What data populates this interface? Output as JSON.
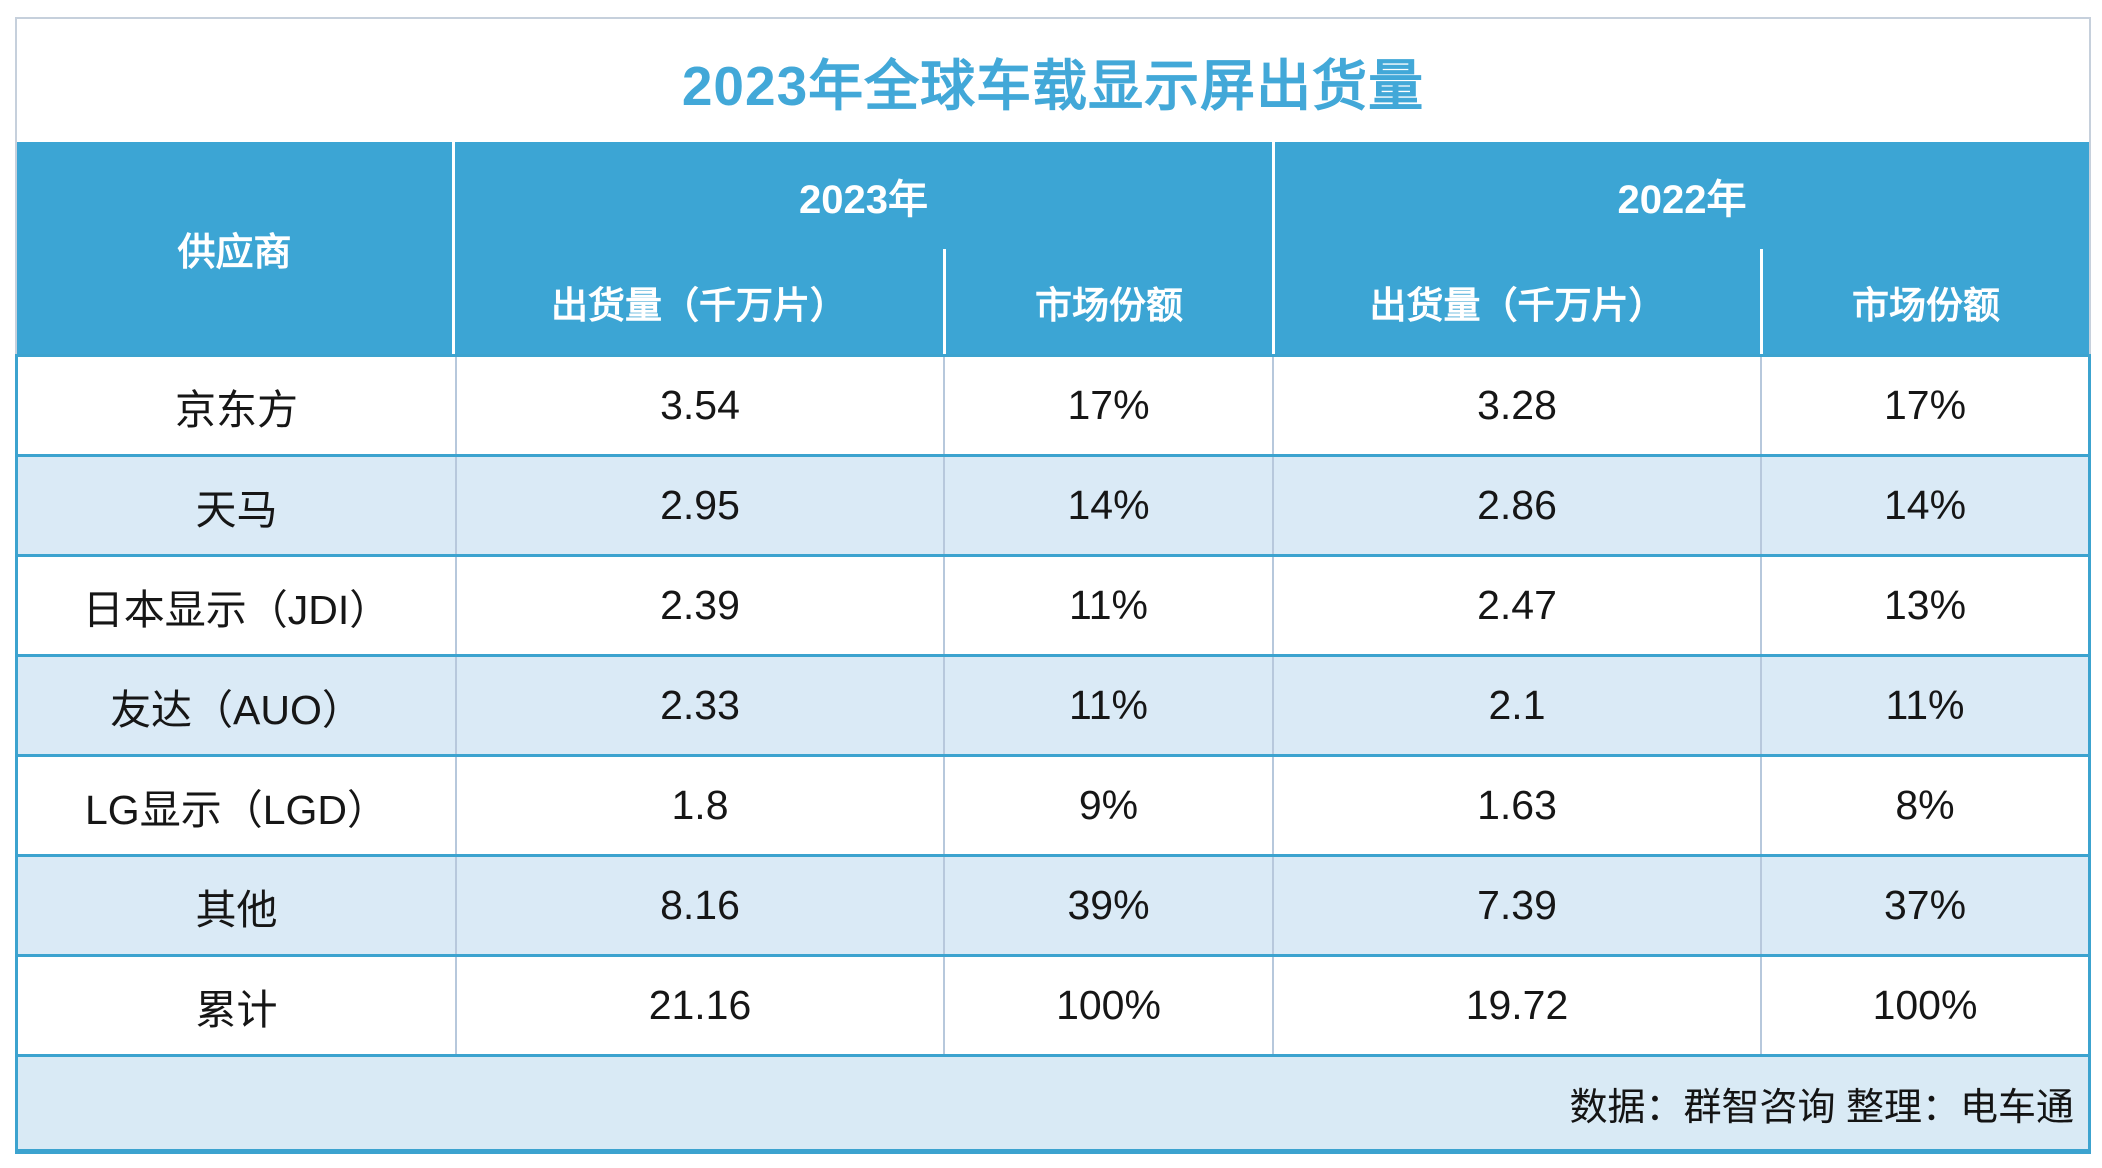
{
  "title": "2023年全球车载显示屏出货量",
  "table": {
    "supplier_header": "供应商",
    "group_2023": "2023年",
    "group_2022": "2022年",
    "sub_shipments": "出货量（千万片）",
    "sub_share": "市场份额",
    "rows": [
      {
        "supplier": "京东方",
        "ship2023": "3.54",
        "share2023": "17%",
        "ship2022": "3.28",
        "share2022": "17%"
      },
      {
        "supplier": "天马",
        "ship2023": "2.95",
        "share2023": "14%",
        "ship2022": "2.86",
        "share2022": "14%"
      },
      {
        "supplier": "日本显示（JDI）",
        "ship2023": "2.39",
        "share2023": "11%",
        "ship2022": "2.47",
        "share2022": "13%"
      },
      {
        "supplier": "友达（AUO）",
        "ship2023": "2.33",
        "share2023": "11%",
        "ship2022": "2.1",
        "share2022": "11%"
      },
      {
        "supplier": "LG显示（LGD）",
        "ship2023": "1.8",
        "share2023": "9%",
        "ship2022": "1.63",
        "share2022": "8%"
      },
      {
        "supplier": "其他",
        "ship2023": "8.16",
        "share2023": "39%",
        "ship2022": "7.39",
        "share2022": "37%"
      },
      {
        "supplier": "累计",
        "ship2023": "21.16",
        "share2023": "100%",
        "ship2022": "19.72",
        "share2022": "100%"
      }
    ],
    "source_note": "数据：群智咨询 整理：电车通"
  },
  "colors": {
    "header_blue": "#3CA5D4",
    "divider_blue": "#3CA3CF",
    "title_blue": "#42A8D8",
    "alt_row_blue": "#DAEAF6",
    "footer_blue": "#D9EAF5",
    "outer_border_gray": "#C6D0DC",
    "cell_divider_gray": "#B7C8DC"
  },
  "chart_data": {
    "type": "table",
    "title": "2023年全球车载显示屏出货量",
    "column_groups": [
      "供应商",
      "2023年",
      "2022年"
    ],
    "columns": [
      "供应商",
      "2023年 出货量（千万片）",
      "2023年 市场份额",
      "2022年 出货量（千万片）",
      "2022年 市场份额"
    ],
    "rows": [
      [
        "京东方",
        3.54,
        "17%",
        3.28,
        "17%"
      ],
      [
        "天马",
        2.95,
        "14%",
        2.86,
        "14%"
      ],
      [
        "日本显示（JDI）",
        2.39,
        "11%",
        2.47,
        "13%"
      ],
      [
        "友达（AUO）",
        2.33,
        "11%",
        2.1,
        "11%"
      ],
      [
        "LG显示（LGD）",
        1.8,
        "9%",
        1.63,
        "8%"
      ],
      [
        "其他",
        8.16,
        "39%",
        7.39,
        "37%"
      ],
      [
        "累计",
        21.16,
        "100%",
        19.72,
        "100%"
      ]
    ],
    "source_note": "数据：群智咨询 整理：电车通"
  }
}
